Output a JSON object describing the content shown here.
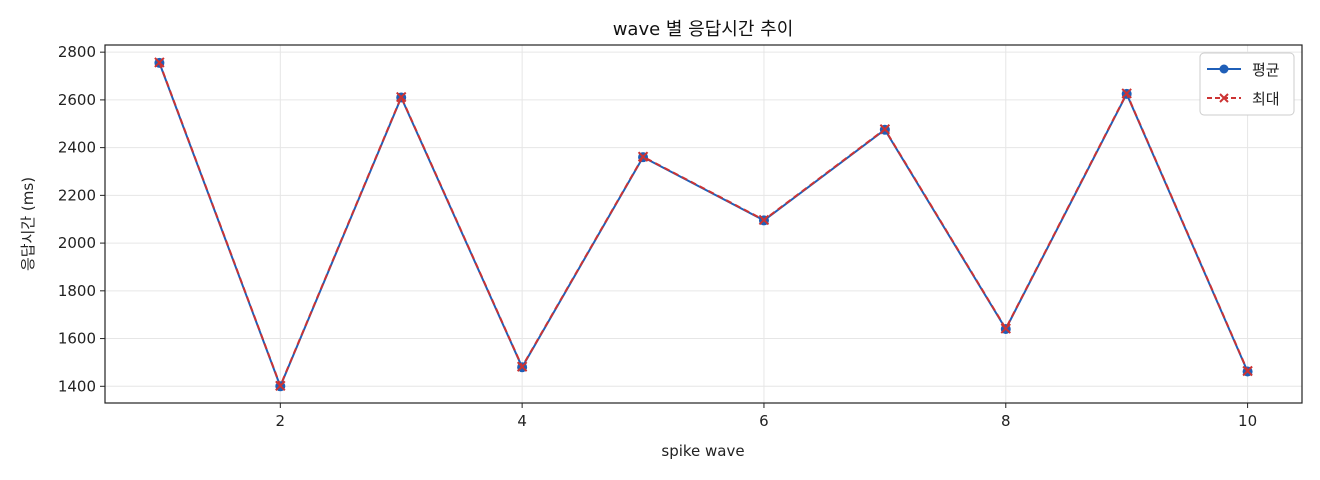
{
  "chart_data": {
    "type": "line",
    "title": "wave 별 응답시간 추이",
    "xlabel": "spike wave",
    "ylabel": "응답시간 (ms)",
    "x": [
      1,
      2,
      3,
      4,
      5,
      6,
      7,
      8,
      9,
      10
    ],
    "xlim": [
      0.55,
      10.45
    ],
    "ylim": [
      1330,
      2830
    ],
    "xticks": [
      2,
      4,
      6,
      8,
      10
    ],
    "yticks": [
      1400,
      1600,
      1800,
      2000,
      2200,
      2400,
      2600,
      2800
    ],
    "grid": true,
    "legend_position": "top-right",
    "series": [
      {
        "name": "평균",
        "values": [
          2755,
          1400,
          2610,
          1480,
          2360,
          2095,
          2475,
          1640,
          2625,
          1462
        ],
        "color": "#1f5fb8",
        "line_style": "solid",
        "marker": "circle"
      },
      {
        "name": "최대",
        "values": [
          2757,
          1402,
          2612,
          1482,
          2362,
          2097,
          2477,
          1642,
          2627,
          1464
        ],
        "color": "#cc3333",
        "line_style": "dashed",
        "marker": "x"
      }
    ]
  }
}
